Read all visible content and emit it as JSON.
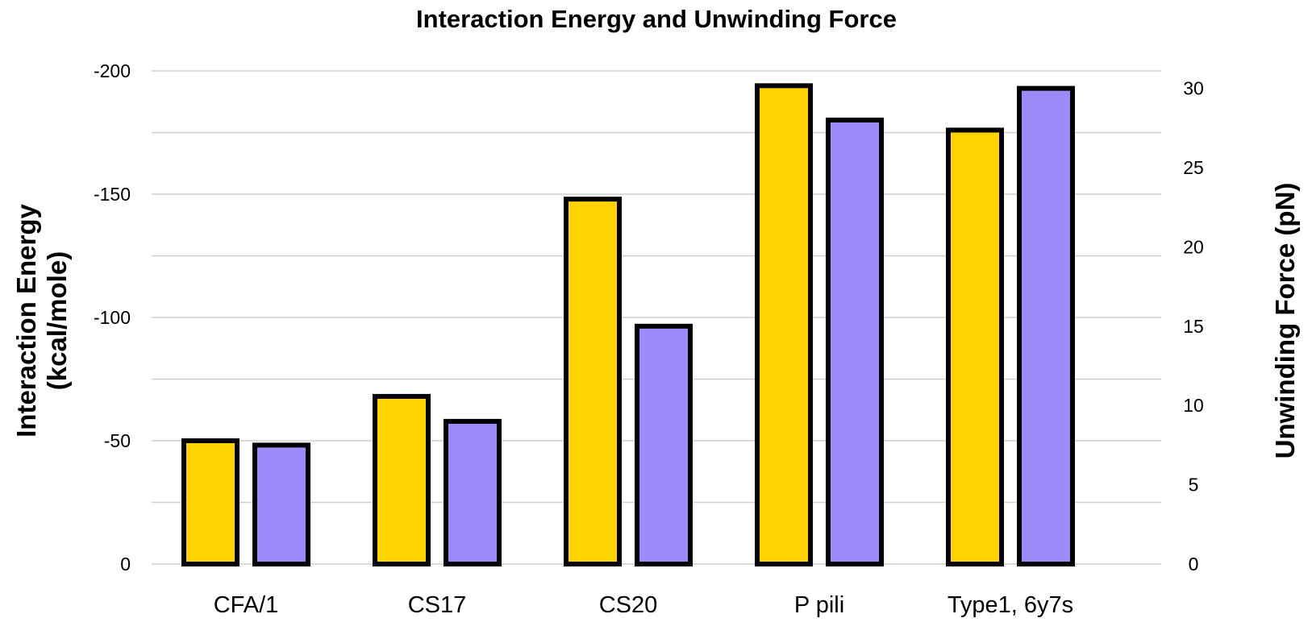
{
  "chart_data": {
    "type": "bar",
    "title": "Interaction Energy and Unwinding Force",
    "categories": [
      "CFA/1",
      "CS17",
      "CS20",
      "P pili",
      "Type1, 6y7s"
    ],
    "left_axis": {
      "label_line1": "Interaction Energy",
      "label_line2": "(kcal/mole)",
      "ticks": [
        "0",
        "-50",
        "-100",
        "-150",
        "-200"
      ],
      "tick_values": [
        0,
        50,
        100,
        150,
        200
      ],
      "range": [
        0,
        200
      ],
      "note": "values plotted as magnitudes; tick labels show negative energies"
    },
    "right_axis": {
      "label": "Unwinding Force (pN)",
      "ticks": [
        "0",
        "5",
        "10",
        "15",
        "20",
        "25",
        "30"
      ],
      "tick_values": [
        0,
        5,
        10,
        15,
        20,
        25,
        30
      ],
      "range": [
        0,
        31.1
      ],
      "color": "#9f86e8"
    },
    "series": [
      {
        "name": "Interaction Energy",
        "axis": "left",
        "color": "#ffd200",
        "values": [
          -50,
          -68,
          -148,
          -194,
          -176
        ]
      },
      {
        "name": "Unwinding Force",
        "axis": "right",
        "color": "#9b8af7",
        "values": [
          7.5,
          9,
          15,
          28,
          30
        ]
      }
    ],
    "grid": true,
    "legend": "none"
  }
}
